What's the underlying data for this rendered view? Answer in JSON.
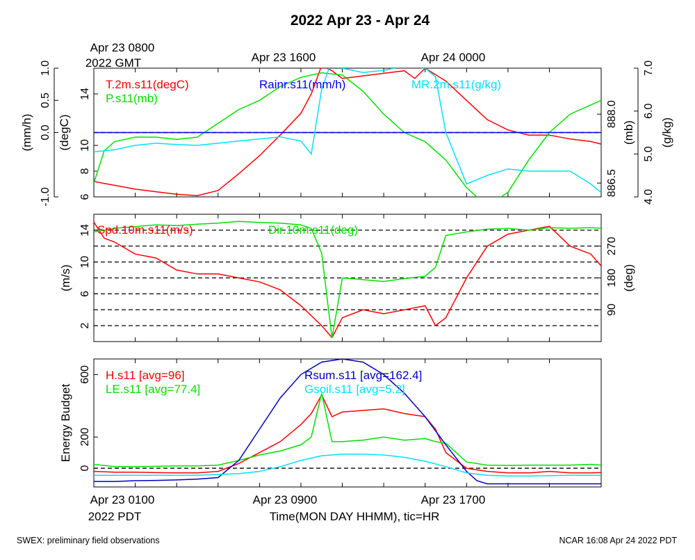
{
  "page_title": "2022 Apr 23 - Apr 24",
  "top_time_labels": [
    {
      "line1": "Apr 23 0800",
      "line2": "2022 GMT"
    },
    {
      "line1": "Apr 23 1600",
      "line2": ""
    },
    {
      "line1": "Apr 24 0000",
      "line2": ""
    }
  ],
  "bottom_time_labels": [
    {
      "line1": "Apr 23 0100",
      "line2": "2022 PDT"
    },
    {
      "line1": "Apr 23 0900",
      "line2": ""
    },
    {
      "line1": "Apr 23 1700",
      "line2": ""
    }
  ],
  "xlabel": "Time(MON DAY HHMM), tic=HR",
  "footer_left": "SWEX: preliminary field observations",
  "footer_right": "NCAR 16:08 Apr 24 2022 PDT",
  "colors": {
    "red": "#ff0000",
    "green": "#00e000",
    "blue": "#0000ff",
    "cyan": "#00e0ff",
    "navy": "#0000c0"
  },
  "chart_data": [
    {
      "type": "line",
      "x_range_hours": [
        1,
        25.5
      ],
      "x_tick_hours": [
        3,
        5,
        7,
        9,
        11,
        13,
        15,
        17,
        19,
        21,
        23
      ],
      "left_axes": [
        {
          "label": "(mm/h)",
          "ylim": [
            -1.0,
            1.0
          ],
          "ticks": [
            "-1.0",
            "0.0",
            "0.5",
            "1.0"
          ],
          "tick_values": [
            -1.0,
            0.0,
            0.5,
            1.0
          ]
        },
        {
          "label": "(degC)",
          "ylim": [
            6,
            16
          ],
          "ticks": [
            "6",
            "8",
            "10",
            "14"
          ],
          "tick_values": [
            6,
            8,
            10,
            14
          ]
        }
      ],
      "right_axes": [
        {
          "label": "(mb)",
          "ylim": [
            886.2,
            889.0
          ],
          "ticks": [
            "886.5",
            "888.0"
          ],
          "tick_values": [
            886.5,
            888.0
          ]
        },
        {
          "label": "(g/kg)",
          "ylim": [
            4.0,
            7.0
          ],
          "ticks": [
            "4.0",
            "5.0",
            "6.0",
            "7.0"
          ],
          "tick_values": [
            4.0,
            5.0,
            6.0,
            7.0
          ]
        }
      ],
      "series": [
        {
          "name": "T.2m.s11(degC)",
          "color": "red",
          "axis": "degC",
          "x": [
            1,
            2,
            3,
            4,
            5,
            6,
            7,
            8,
            9,
            10,
            11,
            11.5,
            12,
            12.5,
            13,
            14,
            15,
            16,
            16.5,
            17,
            18,
            19,
            20,
            21,
            22,
            23,
            24,
            25,
            25.5
          ],
          "values": [
            7.2,
            6.9,
            6.6,
            6.4,
            6.2,
            6.1,
            6.5,
            7.8,
            9.2,
            10.8,
            12.5,
            14.0,
            16.2,
            15.8,
            15.2,
            15.4,
            15.6,
            15.8,
            15.2,
            16.0,
            15.0,
            13.5,
            12.0,
            11.2,
            10.8,
            10.8,
            10.5,
            10.3,
            10.1
          ]
        },
        {
          "name": "P.s11(mb)",
          "color": "green",
          "axis": "mb",
          "x": [
            1,
            1.5,
            2,
            3,
            4,
            5,
            6,
            7,
            8,
            9,
            10,
            11,
            12,
            13,
            14,
            15,
            16,
            17,
            18,
            19,
            20,
            21,
            22,
            23,
            24,
            25,
            25.5
          ],
          "values": [
            886.5,
            887.2,
            887.4,
            887.5,
            887.5,
            887.45,
            887.5,
            887.8,
            888.1,
            888.3,
            888.6,
            888.8,
            888.9,
            888.85,
            888.5,
            888.0,
            887.6,
            887.4,
            887.0,
            886.4,
            886.0,
            886.3,
            887.0,
            887.6,
            888.0,
            888.2,
            888.3
          ]
        },
        {
          "name": "Rainr.s11(mm/h)",
          "color": "blue",
          "axis": "mm/h",
          "x": [
            1,
            25.5
          ],
          "values": [
            0.0,
            0.0
          ]
        },
        {
          "name": "MR.2m.s11(g/kg)",
          "color": "cyan",
          "axis": "g/kg",
          "x": [
            1,
            2,
            3,
            4,
            5,
            6,
            7,
            8,
            9,
            10,
            11,
            11.5,
            12,
            12.5,
            13,
            14,
            15,
            16,
            17,
            17.5,
            18,
            19,
            20,
            21,
            22,
            23,
            24,
            25,
            25.5
          ],
          "values": [
            5.05,
            5.1,
            5.2,
            5.25,
            5.22,
            5.2,
            5.25,
            5.3,
            5.35,
            5.4,
            5.3,
            5.0,
            6.5,
            7.2,
            7.0,
            6.9,
            6.95,
            7.05,
            7.0,
            6.8,
            5.5,
            4.3,
            4.5,
            4.65,
            4.6,
            4.6,
            4.6,
            4.3,
            4.1
          ]
        }
      ]
    },
    {
      "type": "line",
      "x_range_hours": [
        1,
        25.5
      ],
      "x_tick_hours": [
        3,
        5,
        7,
        9,
        11,
        13,
        15,
        17,
        19,
        21,
        23
      ],
      "left_axes": [
        {
          "label": "(m/s)",
          "ylim": [
            0,
            16
          ],
          "ticks": [
            "2",
            "6",
            "10",
            "14"
          ],
          "tick_values": [
            2,
            6,
            10,
            14
          ]
        }
      ],
      "right_axes": [
        {
          "label": "(deg)",
          "ylim": [
            0,
            360
          ],
          "ticks": [
            "90",
            "180",
            "270"
          ],
          "tick_values": [
            90,
            180,
            270
          ]
        }
      ],
      "dashed_lines_deg": [
        45,
        90,
        135,
        180,
        225,
        270,
        315
      ],
      "series": [
        {
          "name": "Spd.10m.s11(m/s)",
          "color": "red",
          "axis": "m/s",
          "x": [
            1,
            1.5,
            2,
            3,
            4,
            5,
            6,
            7,
            8,
            9,
            10,
            11,
            12,
            12.5,
            13,
            14,
            15,
            16,
            17,
            17.5,
            18,
            19,
            20,
            21,
            22,
            23,
            24,
            25,
            25.5
          ],
          "values": [
            15,
            13,
            12.5,
            11,
            10.5,
            9,
            8.5,
            8.5,
            8,
            7.5,
            6.5,
            4.5,
            2,
            0.5,
            3,
            4,
            3.5,
            4,
            4.5,
            2,
            3,
            8,
            12,
            13.5,
            14,
            14.5,
            12,
            11,
            9.5
          ]
        },
        {
          "name": "Dir.10m.s11(deg)",
          "color": "green",
          "axis": "deg",
          "x": [
            1,
            2,
            3,
            4,
            5,
            6,
            7,
            8,
            9,
            10,
            11,
            11.5,
            12,
            12.5,
            13,
            14,
            15,
            16,
            17,
            17.5,
            18,
            19,
            20,
            21,
            22,
            23,
            24,
            25,
            25.5
          ],
          "values": [
            310,
            320,
            325,
            330,
            328,
            332,
            335,
            340,
            337,
            335,
            330,
            320,
            250,
            10,
            180,
            175,
            170,
            178,
            185,
            210,
            300,
            310,
            318,
            320,
            315,
            322,
            320,
            322,
            320
          ]
        }
      ]
    },
    {
      "type": "line",
      "x_range_hours": [
        1,
        25.5
      ],
      "x_tick_hours": [
        3,
        5,
        7,
        9,
        11,
        13,
        15,
        17,
        19,
        21,
        23
      ],
      "left_axes": [
        {
          "label": "Energy Budget",
          "ylim": [
            -120,
            700
          ],
          "ticks": [
            "0",
            "200",
            "600"
          ],
          "tick_values": [
            0,
            200,
            600
          ]
        }
      ],
      "right_axes": [],
      "zero_line": true,
      "series": [
        {
          "name": "H.s11 [avg=96]",
          "color": "red",
          "x": [
            1,
            2,
            3,
            4,
            5,
            6,
            7,
            8,
            9,
            10,
            11,
            11.5,
            12,
            12.5,
            13,
            14,
            15,
            16,
            17,
            17.5,
            18,
            19,
            20,
            21,
            22,
            23,
            24,
            25,
            25.5
          ],
          "values": [
            -20,
            -25,
            -25,
            -28,
            -30,
            -30,
            -20,
            30,
            100,
            170,
            280,
            350,
            470,
            330,
            360,
            370,
            380,
            350,
            330,
            250,
            100,
            0,
            -20,
            -30,
            -30,
            -20,
            -30,
            -30,
            -28
          ]
        },
        {
          "name": "LE.s11 [avg=77.4]",
          "color": "green",
          "x": [
            1,
            2,
            3,
            4,
            5,
            6,
            7,
            8,
            9,
            10,
            11,
            11.5,
            12,
            12.5,
            13,
            14,
            15,
            16,
            17,
            17.5,
            18,
            19,
            20,
            21,
            22,
            23,
            24,
            25,
            25.5
          ],
          "values": [
            25,
            10,
            10,
            12,
            15,
            15,
            20,
            50,
            85,
            110,
            150,
            200,
            480,
            170,
            170,
            180,
            200,
            180,
            190,
            170,
            160,
            40,
            20,
            18,
            20,
            20,
            20,
            25,
            20
          ]
        },
        {
          "name": "Rsum.s11 [avg=162.4]",
          "color": "navy",
          "x": [
            1,
            2,
            3,
            4,
            5,
            6,
            7,
            8,
            9,
            10,
            11,
            12,
            13,
            14,
            15,
            16,
            17,
            18,
            19,
            19.5,
            20,
            21,
            22,
            23,
            24,
            25,
            25.5
          ],
          "values": [
            -85,
            -85,
            -80,
            -78,
            -75,
            -70,
            -60,
            50,
            250,
            450,
            600,
            680,
            700,
            680,
            600,
            480,
            330,
            150,
            -20,
            -80,
            -100,
            -100,
            -100,
            -100,
            -100,
            -100,
            -100
          ]
        },
        {
          "name": "Gsoil.s11 [avg=5.2]",
          "color": "cyan",
          "x": [
            1,
            2,
            3,
            4,
            5,
            6,
            7,
            8,
            9,
            10,
            11,
            12,
            13,
            14,
            15,
            16,
            17,
            18,
            19,
            20,
            21,
            22,
            23,
            24,
            25,
            25.5
          ],
          "values": [
            -45,
            -45,
            -45,
            -45,
            -45,
            -45,
            -40,
            -35,
            -20,
            10,
            50,
            80,
            90,
            90,
            85,
            70,
            45,
            10,
            -30,
            -45,
            -50,
            -50,
            -48,
            -45,
            -45,
            -45
          ]
        }
      ]
    }
  ]
}
